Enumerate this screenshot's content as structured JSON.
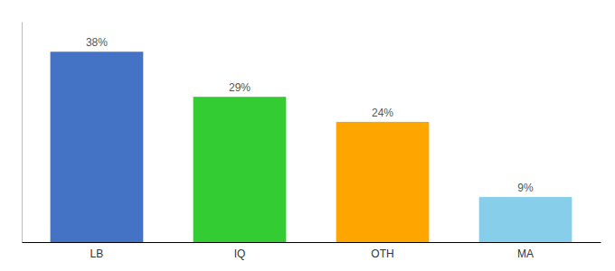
{
  "chart_data": {
    "type": "bar",
    "categories": [
      "LB",
      "IQ",
      "OTH",
      "MA"
    ],
    "values": [
      38,
      29,
      24,
      9
    ],
    "value_labels": [
      "38%",
      "29%",
      "24%",
      "9%"
    ],
    "colors": [
      "#4472C4",
      "#33CC33",
      "#FFA500",
      "#87CEEB"
    ],
    "ylim": [
      0,
      44
    ],
    "data_labels": true,
    "tick_labels": "x"
  }
}
